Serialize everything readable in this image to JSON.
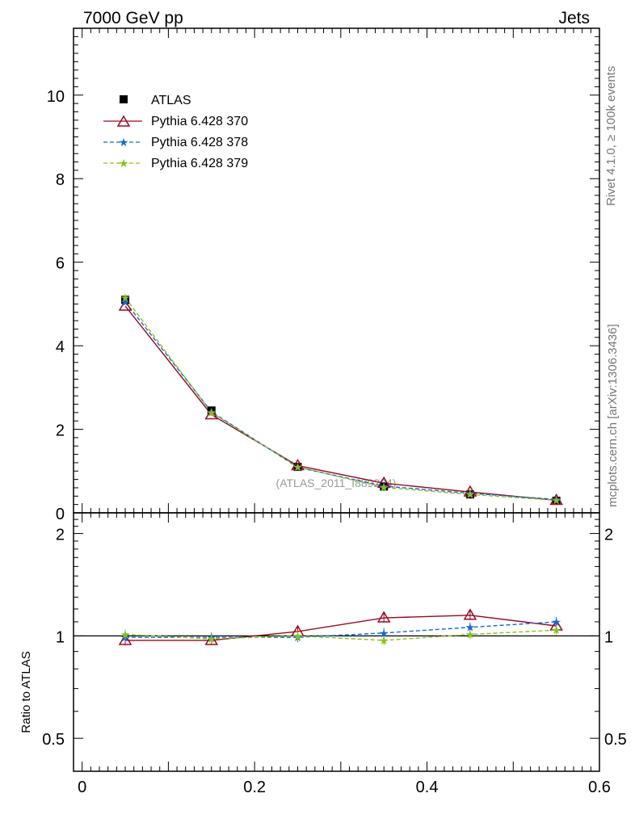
{
  "header": {
    "left": "7000 GeV pp",
    "right": "Jets"
  },
  "side_text": {
    "rivet": "Rivet 4.1.0, ≥ 100k events",
    "mcplots": "mcplots.cern.ch [arXiv:1306.3436]"
  },
  "watermark": "(ATLAS_2011_I889284)",
  "colors": {
    "atlas": "#000000",
    "p370": "#9b0a22",
    "p378": "#1569d4",
    "p379": "#86c21e"
  },
  "chart_data": [
    {
      "type": "line",
      "panel": "main",
      "xlim": [
        -0.01,
        0.6
      ],
      "ylim": [
        0,
        11.6
      ],
      "ylabel": "",
      "y_ticks": [
        0,
        2,
        4,
        6,
        8,
        10
      ],
      "y_tick_labels": [
        "0",
        "2",
        "4",
        "6",
        "8",
        "10"
      ],
      "grid": false,
      "legend_position": "top-left",
      "x": [
        0.05,
        0.15,
        0.25,
        0.35,
        0.45,
        0.55
      ],
      "series": [
        {
          "name": "ATLAS",
          "marker": "square",
          "style": "points",
          "color": "#000000",
          "values": [
            5.1,
            2.45,
            1.1,
            0.63,
            0.44,
            0.29
          ],
          "errors": [
            0.1,
            0.06,
            0.04,
            0.03,
            0.03,
            0.02
          ]
        },
        {
          "name": "Pythia 6.428 370",
          "marker": "triangle-open",
          "style": "solid",
          "color": "#9b0a22",
          "values": [
            4.95,
            2.35,
            1.13,
            0.71,
            0.5,
            0.3
          ]
        },
        {
          "name": "Pythia 6.428 378",
          "marker": "star",
          "style": "dashed",
          "color": "#1569d4",
          "values": [
            5.05,
            2.42,
            1.09,
            0.64,
            0.47,
            0.32
          ]
        },
        {
          "name": "Pythia 6.428 379",
          "marker": "star",
          "style": "dashed",
          "color": "#86c21e",
          "values": [
            5.15,
            2.4,
            1.1,
            0.61,
            0.44,
            0.3
          ]
        }
      ]
    },
    {
      "type": "line",
      "panel": "ratio",
      "xlim": [
        -0.01,
        0.6
      ],
      "ylim": [
        0.4,
        2.3
      ],
      "ylabel": "Ratio to ATLAS",
      "x_ticks": [
        0,
        0.2,
        0.4,
        0.6
      ],
      "x_tick_labels": [
        "0",
        "0.2",
        "0.4",
        "0.6"
      ],
      "y_ticks": [
        0.5,
        1,
        2
      ],
      "y_tick_labels": [
        "0.5",
        "1",
        "2"
      ],
      "reference_line": 1,
      "x": [
        0.05,
        0.15,
        0.25,
        0.35,
        0.45,
        0.55
      ],
      "series": [
        {
          "name": "Pythia 6.428 370",
          "color": "#9b0a22",
          "style": "solid",
          "marker": "triangle-open",
          "values": [
            0.97,
            0.97,
            1.03,
            1.13,
            1.15,
            1.07
          ]
        },
        {
          "name": "Pythia 6.428 378",
          "color": "#1569d4",
          "style": "dashed",
          "marker": "star",
          "values": [
            0.99,
            0.99,
            0.99,
            1.02,
            1.06,
            1.1
          ]
        },
        {
          "name": "Pythia 6.428 379",
          "color": "#86c21e",
          "style": "dashed",
          "marker": "star",
          "values": [
            1.01,
            0.98,
            1.0,
            0.97,
            1.01,
            1.04
          ]
        }
      ]
    }
  ]
}
